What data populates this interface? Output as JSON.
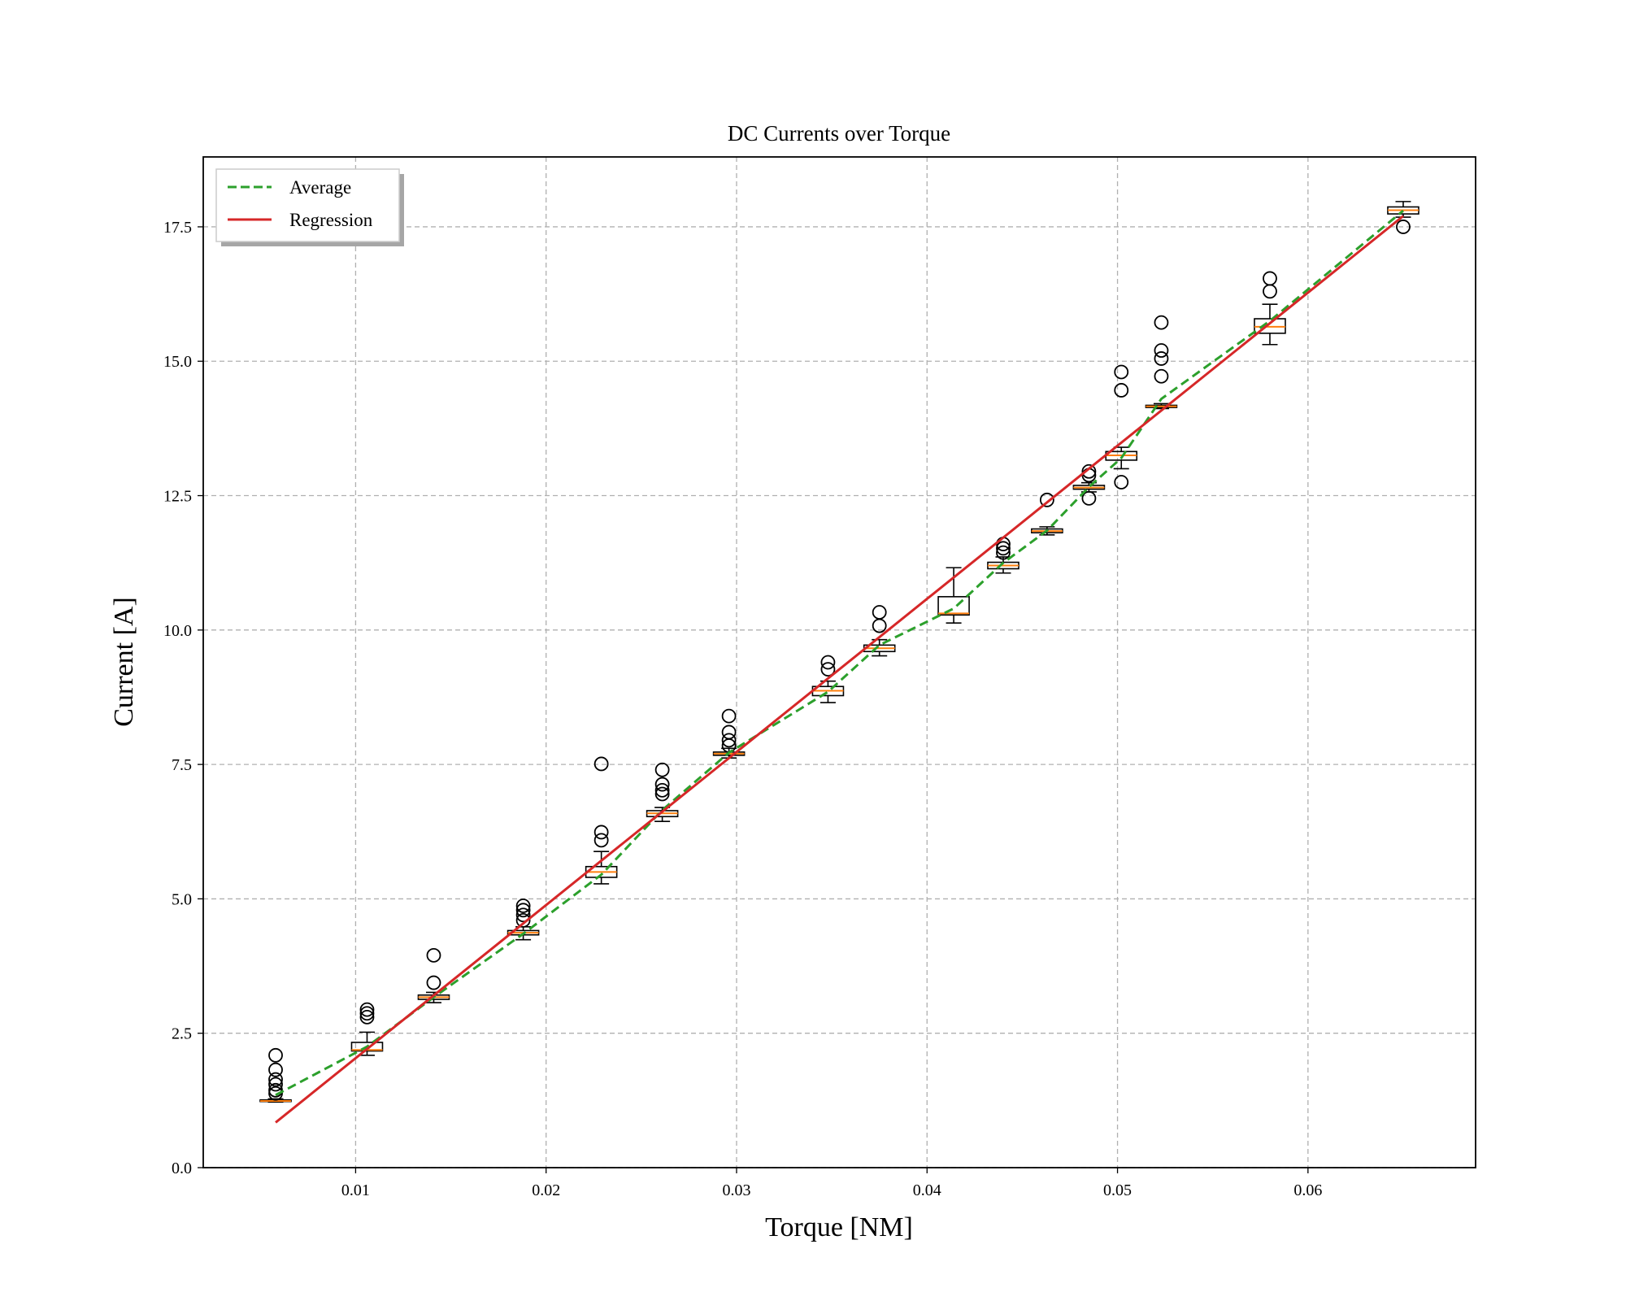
{
  "chart_data": {
    "type": "box",
    "title": "DC Currents over Torque",
    "xlabel": "Torque [NM]",
    "ylabel": "Current [A]",
    "xlim": [
      0.002,
      0.0688
    ],
    "ylim": [
      0,
      18.8
    ],
    "xticks": [
      0.01,
      0.02,
      0.03,
      0.04,
      0.05,
      0.06
    ],
    "xtick_labels": [
      "0.01",
      "0.02",
      "0.03",
      "0.04",
      "0.05",
      "0.06"
    ],
    "yticks": [
      0,
      2.5,
      5,
      7.5,
      10,
      12.5,
      15,
      17.5
    ],
    "ytick_labels": [
      "0.0",
      "2.5",
      "5.0",
      "7.5",
      "10.0",
      "12.5",
      "15.0",
      "17.5"
    ],
    "grid": true,
    "legend": {
      "placement": "upper-left",
      "entries": [
        {
          "label": "Average",
          "color": "#2ca02c",
          "style": "dashed"
        },
        {
          "label": "Regression",
          "color": "#d62728",
          "style": "solid"
        }
      ]
    },
    "boxes": [
      {
        "x": 0.0058,
        "wlo": 1.22,
        "q1": 1.23,
        "med": 1.24,
        "q3": 1.26,
        "whi": 1.28,
        "fliers": [
          2.09,
          1.82,
          1.64,
          1.55,
          1.44,
          1.38
        ]
      },
      {
        "x": 0.0106,
        "wlo": 2.09,
        "q1": 2.17,
        "med": 2.19,
        "q3": 2.33,
        "whi": 2.52,
        "fliers": [
          2.94,
          2.87,
          2.8
        ]
      },
      {
        "x": 0.0141,
        "wlo": 3.07,
        "q1": 3.13,
        "med": 3.17,
        "q3": 3.21,
        "whi": 3.26,
        "fliers": [
          3.95,
          3.44
        ]
      },
      {
        "x": 0.0188,
        "wlo": 4.24,
        "q1": 4.33,
        "med": 4.37,
        "q3": 4.41,
        "whi": 4.48,
        "fliers": [
          4.87,
          4.79,
          4.7,
          4.6
        ]
      },
      {
        "x": 0.0229,
        "wlo": 5.28,
        "q1": 5.4,
        "med": 5.5,
        "q3": 5.6,
        "whi": 5.88,
        "fliers": [
          7.51,
          6.24,
          6.09
        ]
      },
      {
        "x": 0.0261,
        "wlo": 6.44,
        "q1": 6.53,
        "med": 6.59,
        "q3": 6.64,
        "whi": 6.7,
        "fliers": [
          7.4,
          7.13,
          7.02,
          6.95
        ]
      },
      {
        "x": 0.0296,
        "wlo": 7.62,
        "q1": 7.67,
        "med": 7.7,
        "q3": 7.73,
        "whi": 7.8,
        "fliers": [
          8.4,
          8.1,
          7.95,
          7.85
        ]
      },
      {
        "x": 0.0348,
        "wlo": 8.65,
        "q1": 8.78,
        "med": 8.87,
        "q3": 8.95,
        "whi": 9.05,
        "fliers": [
          9.4,
          9.27
        ]
      },
      {
        "x": 0.0375,
        "wlo": 9.52,
        "q1": 9.6,
        "med": 9.66,
        "q3": 9.72,
        "whi": 9.82,
        "fliers": [
          10.33,
          10.08
        ]
      },
      {
        "x": 0.0414,
        "wlo": 10.13,
        "q1": 10.28,
        "med": 10.31,
        "q3": 10.62,
        "whi": 11.16,
        "fliers": []
      },
      {
        "x": 0.044,
        "wlo": 11.06,
        "q1": 11.14,
        "med": 11.2,
        "q3": 11.26,
        "whi": 11.36,
        "fliers": [
          11.6,
          11.52,
          11.44
        ]
      },
      {
        "x": 0.0463,
        "wlo": 11.77,
        "q1": 11.81,
        "med": 11.84,
        "q3": 11.88,
        "whi": 11.92,
        "fliers": [
          12.42
        ]
      },
      {
        "x": 0.0485,
        "wlo": 12.57,
        "q1": 12.62,
        "med": 12.65,
        "q3": 12.69,
        "whi": 12.74,
        "fliers": [
          12.95,
          12.88,
          12.45
        ]
      },
      {
        "x": 0.0502,
        "wlo": 13.0,
        "q1": 13.16,
        "med": 13.25,
        "q3": 13.32,
        "whi": 13.4,
        "fliers": [
          14.8,
          14.46,
          12.75
        ]
      },
      {
        "x": 0.0523,
        "wlo": 14.12,
        "q1": 14.14,
        "med": 14.16,
        "q3": 14.18,
        "whi": 14.21,
        "fliers": [
          15.72,
          15.2,
          15.05,
          14.72
        ]
      },
      {
        "x": 0.058,
        "wlo": 15.31,
        "q1": 15.52,
        "med": 15.64,
        "q3": 15.79,
        "whi": 16.06,
        "fliers": [
          16.54,
          16.3
        ]
      },
      {
        "x": 0.065,
        "wlo": 17.68,
        "q1": 17.74,
        "med": 17.81,
        "q3": 17.87,
        "whi": 17.97,
        "fliers": [
          17.5
        ]
      }
    ],
    "series": [
      {
        "name": "Average",
        "x": [
          0.0058,
          0.0106,
          0.0141,
          0.0188,
          0.0229,
          0.0261,
          0.0296,
          0.0348,
          0.0375,
          0.0414,
          0.044,
          0.0463,
          0.0485,
          0.0502,
          0.0523,
          0.058,
          0.065
        ],
        "y": [
          1.35,
          2.25,
          3.17,
          4.35,
          5.45,
          6.65,
          7.72,
          8.85,
          9.72,
          10.4,
          11.25,
          11.85,
          12.66,
          13.2,
          14.3,
          15.75,
          17.8
        ]
      },
      {
        "name": "Regression",
        "x": [
          0.0058,
          0.065
        ],
        "y": [
          0.84,
          17.7
        ]
      }
    ]
  }
}
